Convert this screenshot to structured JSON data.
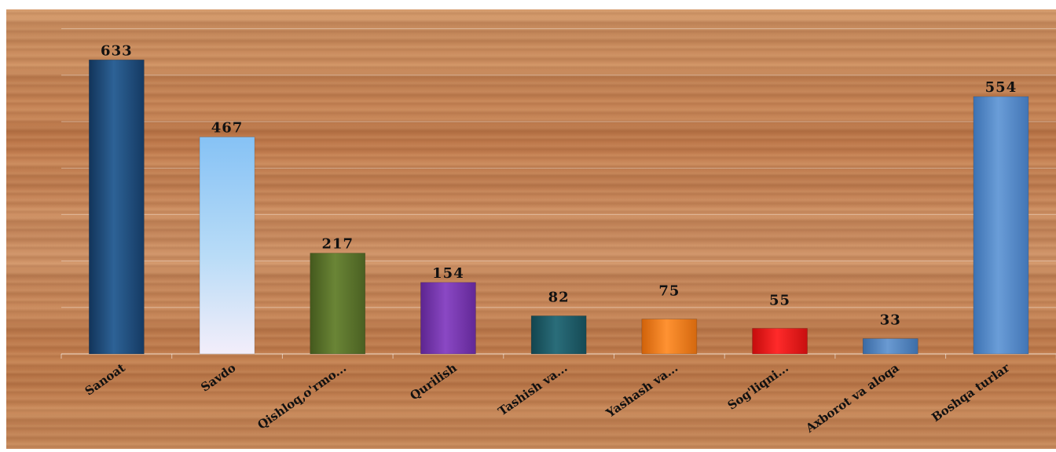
{
  "chart_data": {
    "type": "bar",
    "title": "",
    "xlabel": "",
    "ylabel": "",
    "categories": [
      "Sanoat",
      "Savdo",
      "Qishloq,o'rmo...",
      "Qurilish",
      "Tashish va...",
      "Yashash va...",
      "Sog'liqni...",
      "Axborot va aloqa",
      "Boshqa turlar"
    ],
    "values": [
      633,
      467,
      217,
      154,
      82,
      75,
      55,
      33,
      554
    ],
    "data_labels": [
      "633",
      "467",
      "217",
      "154",
      "82",
      "75",
      "55",
      "33",
      "554"
    ],
    "ylim": [
      0,
      700
    ],
    "grid": true,
    "legend": "none",
    "bar_colors": [
      "#1f4e7f",
      "#9cc9f3",
      "#5b742b",
      "#7536ad",
      "#1c5a66",
      "#ee7a14",
      "#e21212",
      "#4c7fba",
      "#4f83c2"
    ]
  }
}
